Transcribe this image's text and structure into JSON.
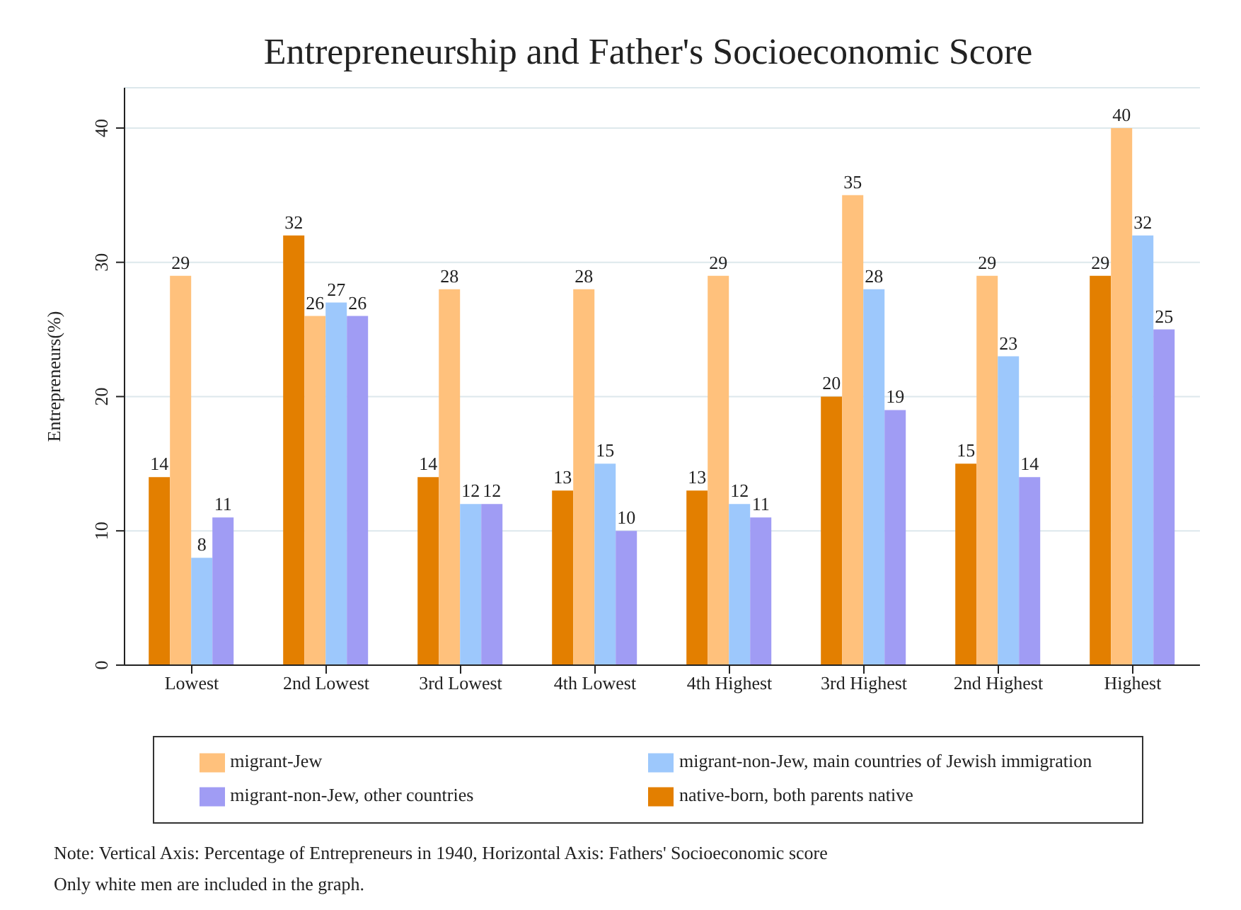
{
  "chart_data": {
    "type": "bar",
    "title": "Entrepreneurship and Father's Socioeconomic Score",
    "ylabel": "Entrepreneurs(%)",
    "categories": [
      "Lowest",
      "2nd Lowest",
      "3rd Lowest",
      "4th Lowest",
      "4th Highest",
      "3rd Highest",
      "2nd Highest",
      "Highest"
    ],
    "series": [
      {
        "name": "native-born, both parents native",
        "color": "#e37f00",
        "values": [
          14,
          32,
          14,
          13,
          13,
          20,
          15,
          29
        ]
      },
      {
        "name": "migrant-Jew",
        "color": "#ffc17c",
        "values": [
          29,
          26,
          28,
          28,
          29,
          35,
          29,
          40
        ]
      },
      {
        "name": "migrant-non-Jew, main countries of Jewish immigration",
        "color": "#9dc8fc",
        "values": [
          8,
          27,
          12,
          15,
          12,
          28,
          23,
          32
        ]
      },
      {
        "name": "migrant-non-Jew, other countries",
        "color": "#a09cf4",
        "values": [
          11,
          26,
          12,
          10,
          11,
          19,
          14,
          25
        ]
      }
    ],
    "ylim": [
      0,
      43
    ],
    "yticks": [
      0,
      10,
      20,
      30,
      40
    ],
    "grid": "y",
    "legend": "bottom",
    "data_labels": true,
    "annotations": [
      "Note: Vertical Axis: Percentage of Entrepreneurs in 1940, Horizontal Axis: Fathers' Socioeconomic score",
      "Only white men are included in the graph."
    ]
  }
}
